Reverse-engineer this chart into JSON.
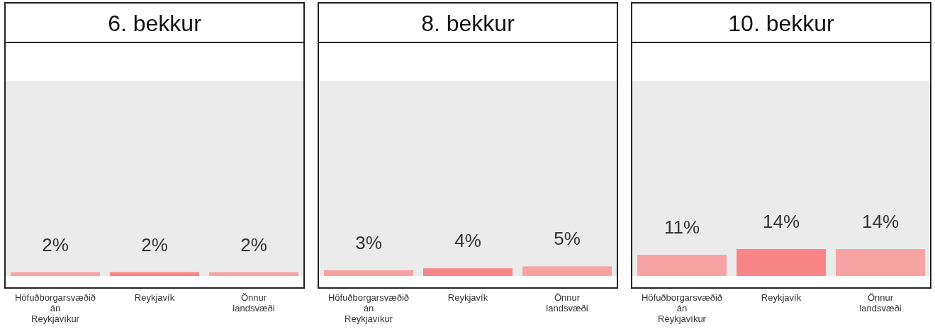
{
  "chart_data": [
    {
      "type": "bar",
      "title": "6. bekkur",
      "categories": [
        "Höfuðborgarsvæðið án Reykjavíkur",
        "Reykjavík",
        "Önnur landsvæði"
      ],
      "values": [
        2,
        2,
        2
      ],
      "colors": [
        "#f7a3a3",
        "#f88686",
        "#f7a3a3"
      ],
      "value_labels": [
        "2%",
        "2%",
        "2%"
      ],
      "tick_labels": "x"
    },
    {
      "type": "bar",
      "title": "8. bekkur",
      "categories": [
        "Höfuðborgarsvæðið án Reykjavíkur",
        "Reykjavík",
        "Önnur landsvæði"
      ],
      "values": [
        3,
        4,
        5
      ],
      "colors": [
        "#f7a3a3",
        "#f88686",
        "#f7a3a3"
      ],
      "value_labels": [
        "3%",
        "4%",
        "5%"
      ],
      "tick_labels": "x"
    },
    {
      "type": "bar",
      "title": "10. bekkur",
      "categories": [
        "Höfuðborgarsvæðið án Reykjavíkur",
        "Reykjavík",
        "Önnur landsvæði"
      ],
      "values": [
        11,
        14,
        14
      ],
      "colors": [
        "#f7a3a3",
        "#f88686",
        "#f7a3a3"
      ],
      "value_labels": [
        "11%",
        "14%",
        "14%"
      ],
      "tick_labels": "x"
    }
  ]
}
